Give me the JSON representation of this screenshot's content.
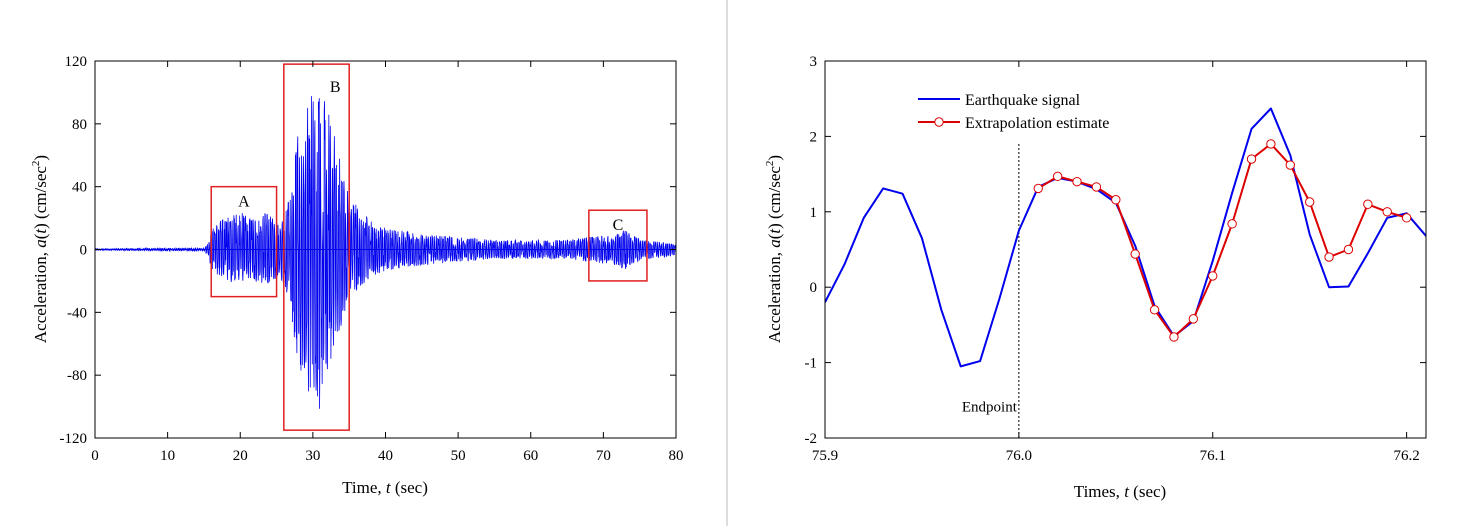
{
  "colors": {
    "signal": "#0000ee",
    "estimate": "#dd0000",
    "boxes": "#e02020",
    "marker_fill": "#ffffff",
    "divider": "#bbbbbb"
  },
  "chart_data": [
    {
      "type": "line",
      "title": "",
      "xlabel": "Time, t  (sec)",
      "xlabel_parts": {
        "pre": "Time, ",
        "var": "t",
        "post": "  (sec)"
      },
      "ylabel": "Acceleration, a(t) (cm/sec2)",
      "ylabel_parts": {
        "pre": "Acceleration, ",
        "var": "a",
        "mid": "(",
        "var2": "t",
        "post": ") (cm/sec",
        "sup": "2",
        "end": ")"
      },
      "xlim": [
        0,
        80
      ],
      "ylim": [
        -120,
        120
      ],
      "xticks": [
        0,
        10,
        20,
        30,
        40,
        50,
        60,
        70,
        80
      ],
      "yticks": [
        -120,
        -80,
        -40,
        0,
        40,
        80,
        120
      ],
      "xtick_labels": [
        "0",
        "10",
        "20",
        "30",
        "40",
        "50",
        "60",
        "70",
        "80"
      ],
      "ytick_labels": [
        "-120",
        "-80",
        "-40",
        "0",
        "40",
        "80",
        "120"
      ],
      "grid": false,
      "series": [
        {
          "envelope": {
            "t": [
              0,
              15,
              15.5,
              16,
              17,
              18,
              19,
              20,
              21,
              22,
              23,
              24,
              25,
              26,
              27,
              28,
              29,
              30,
              31,
              32,
              33,
              34,
              35,
              36,
              38,
              40,
              45,
              50,
              55,
              60,
              65,
              68,
              70,
              72,
              73,
              74,
              76,
              80
            ],
            "max": [
              0.5,
              1,
              4,
              12,
              18,
              20,
              22,
              24,
              22,
              20,
              24,
              22,
              18,
              20,
              38,
              80,
              92,
              108,
              114,
              96,
              72,
              55,
              34,
              28,
              18,
              14,
              10,
              8,
              6,
              6,
              6,
              8,
              9,
              10,
              14,
              9,
              6,
              4
            ],
            "min": [
              -0.5,
              -1,
              -4,
              -12,
              -18,
              -20,
              -22,
              -22,
              -20,
              -20,
              -22,
              -22,
              -18,
              -22,
              -40,
              -78,
              -96,
              -90,
              -110,
              -80,
              -62,
              -48,
              -30,
              -26,
              -18,
              -14,
              -10,
              -8,
              -6,
              -6,
              -6,
              -8,
              -9,
              -10,
              -14,
              -9,
              -6,
              -4
            ]
          }
        }
      ],
      "annotations": [
        {
          "label": "A",
          "x_range": [
            16,
            25
          ],
          "y_range": [
            -30,
            40
          ]
        },
        {
          "label": "B",
          "x_range": [
            26,
            35
          ],
          "y_range": [
            -115,
            118
          ]
        },
        {
          "label": "C",
          "x_range": [
            68,
            76
          ],
          "y_range": [
            -20,
            25
          ]
        }
      ]
    },
    {
      "type": "line",
      "title": "",
      "xlabel": "Times, t  (sec)",
      "xlabel_parts": {
        "pre": "Times, ",
        "var": "t",
        "post": "  (sec)"
      },
      "ylabel": "Acceleration, a(t)  (cm/sec2)",
      "ylabel_parts": {
        "pre": "Acceleration, ",
        "var": "a",
        "mid": "(",
        "var2": "t",
        "post": ")  (cm/sec",
        "sup": "2",
        "end": ")"
      },
      "xlim": [
        75.9,
        76.21
      ],
      "ylim": [
        -2,
        3
      ],
      "xticks": [
        75.9,
        76.0,
        76.1,
        76.2
      ],
      "yticks": [
        -2,
        -1,
        0,
        1,
        2,
        3
      ],
      "xtick_labels": [
        "75.9",
        "76.0",
        "76.1",
        "76.2"
      ],
      "ytick_labels": [
        "-2",
        "-1",
        "0",
        "1",
        "2",
        "3"
      ],
      "grid": false,
      "legend_position": "top-left",
      "series": [
        {
          "name": "Earthquake signal",
          "x": [
            75.9,
            75.91,
            75.92,
            75.93,
            75.94,
            75.95,
            75.96,
            75.97,
            75.98,
            75.99,
            76.0,
            76.01,
            76.02,
            76.03,
            76.04,
            76.05,
            76.06,
            76.07,
            76.08,
            76.09,
            76.1,
            76.11,
            76.12,
            76.13,
            76.14,
            76.15,
            76.16,
            76.17,
            76.18,
            76.19,
            76.2,
            76.21
          ],
          "y": [
            -0.2,
            0.3,
            0.92,
            1.31,
            1.24,
            0.65,
            -0.3,
            -1.05,
            -0.98,
            -0.15,
            0.75,
            1.33,
            1.45,
            1.4,
            1.3,
            1.12,
            0.55,
            -0.25,
            -0.65,
            -0.45,
            0.35,
            1.25,
            2.1,
            2.37,
            1.75,
            0.7,
            0.0,
            0.01,
            0.45,
            0.92,
            0.98,
            0.68
          ]
        },
        {
          "name": "Extrapolation estimate",
          "x": [
            76.01,
            76.02,
            76.03,
            76.04,
            76.05,
            76.06,
            76.07,
            76.08,
            76.09,
            76.1,
            76.11,
            76.12,
            76.13,
            76.14,
            76.15,
            76.16,
            76.17,
            76.18,
            76.19,
            76.2
          ],
          "y": [
            1.31,
            1.47,
            1.4,
            1.33,
            1.16,
            0.44,
            -0.3,
            -0.66,
            -0.42,
            0.15,
            0.84,
            1.7,
            1.9,
            1.62,
            1.13,
            0.4,
            0.5,
            1.1,
            1.0,
            0.92
          ]
        }
      ],
      "annotations": [
        {
          "label": "Endpoint",
          "x": 76.0
        }
      ]
    }
  ]
}
